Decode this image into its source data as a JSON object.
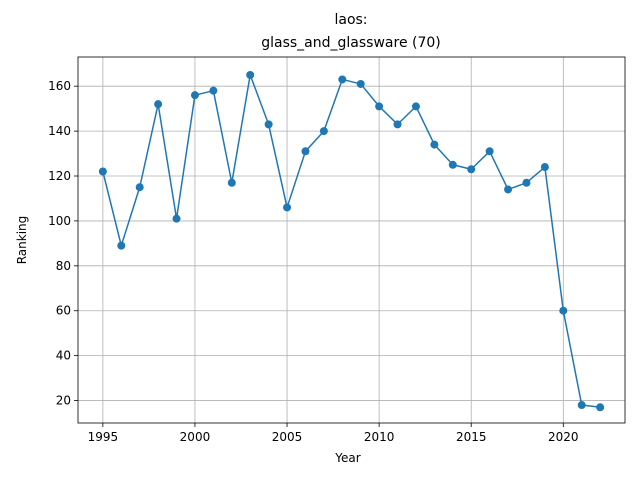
{
  "chart_data": {
    "type": "line",
    "title_line1": "laos:",
    "title_line2": "glass_and_glassware (70)",
    "xlabel": "Year",
    "ylabel": "Ranking",
    "xlim": [
      1993.65,
      1996.35
    ],
    "ylim": [
      10,
      173
    ],
    "grid": true,
    "color": "#1f77b4",
    "x_ticks": [
      1995,
      2000,
      2005,
      2010,
      2015,
      2020
    ],
    "y_ticks": [
      20,
      40,
      60,
      80,
      100,
      120,
      140,
      160
    ],
    "series": [
      {
        "x": [
          1995,
          1996,
          1997,
          1998,
          1999,
          2000,
          2001,
          2002,
          2003,
          2004,
          2005,
          2006,
          2007,
          2008,
          2009,
          2010,
          2011,
          2012,
          2013,
          2014,
          2015,
          2016,
          2017,
          2018,
          2019,
          2020,
          2021,
          2022
        ],
        "values": [
          122,
          89,
          115,
          152,
          101,
          156,
          158,
          117,
          165,
          143,
          106,
          131,
          140,
          163,
          161,
          151,
          143,
          151,
          134,
          125,
          123,
          131,
          114,
          117,
          124,
          60,
          18,
          17
        ]
      }
    ]
  }
}
